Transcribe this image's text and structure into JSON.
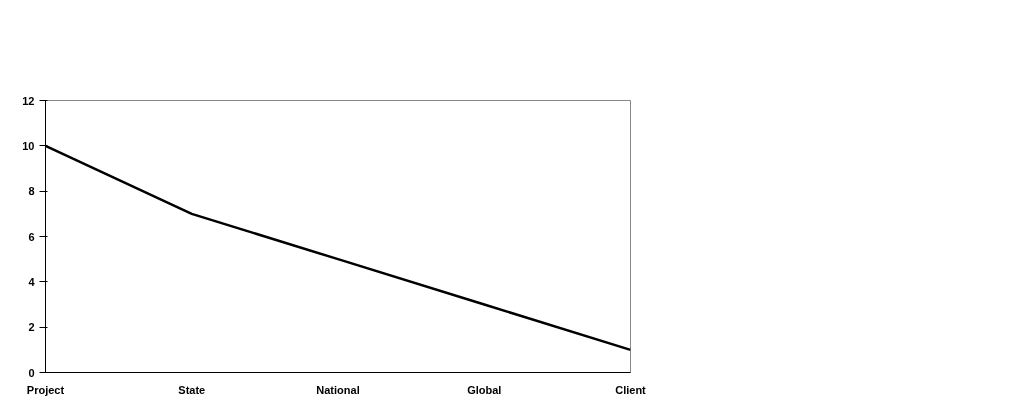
{
  "chart_data": {
    "type": "line",
    "categories": [
      "Project",
      "State",
      "National",
      "Global",
      "Client"
    ],
    "series": [
      {
        "color": "#000000",
        "values": [
          10,
          7,
          5,
          3,
          1
        ]
      }
    ],
    "ylim": [
      0,
      12
    ],
    "yticks": [
      0,
      2,
      4,
      6,
      8,
      10,
      12
    ],
    "grid": false,
    "marker": "none",
    "line_style": "solid"
  }
}
